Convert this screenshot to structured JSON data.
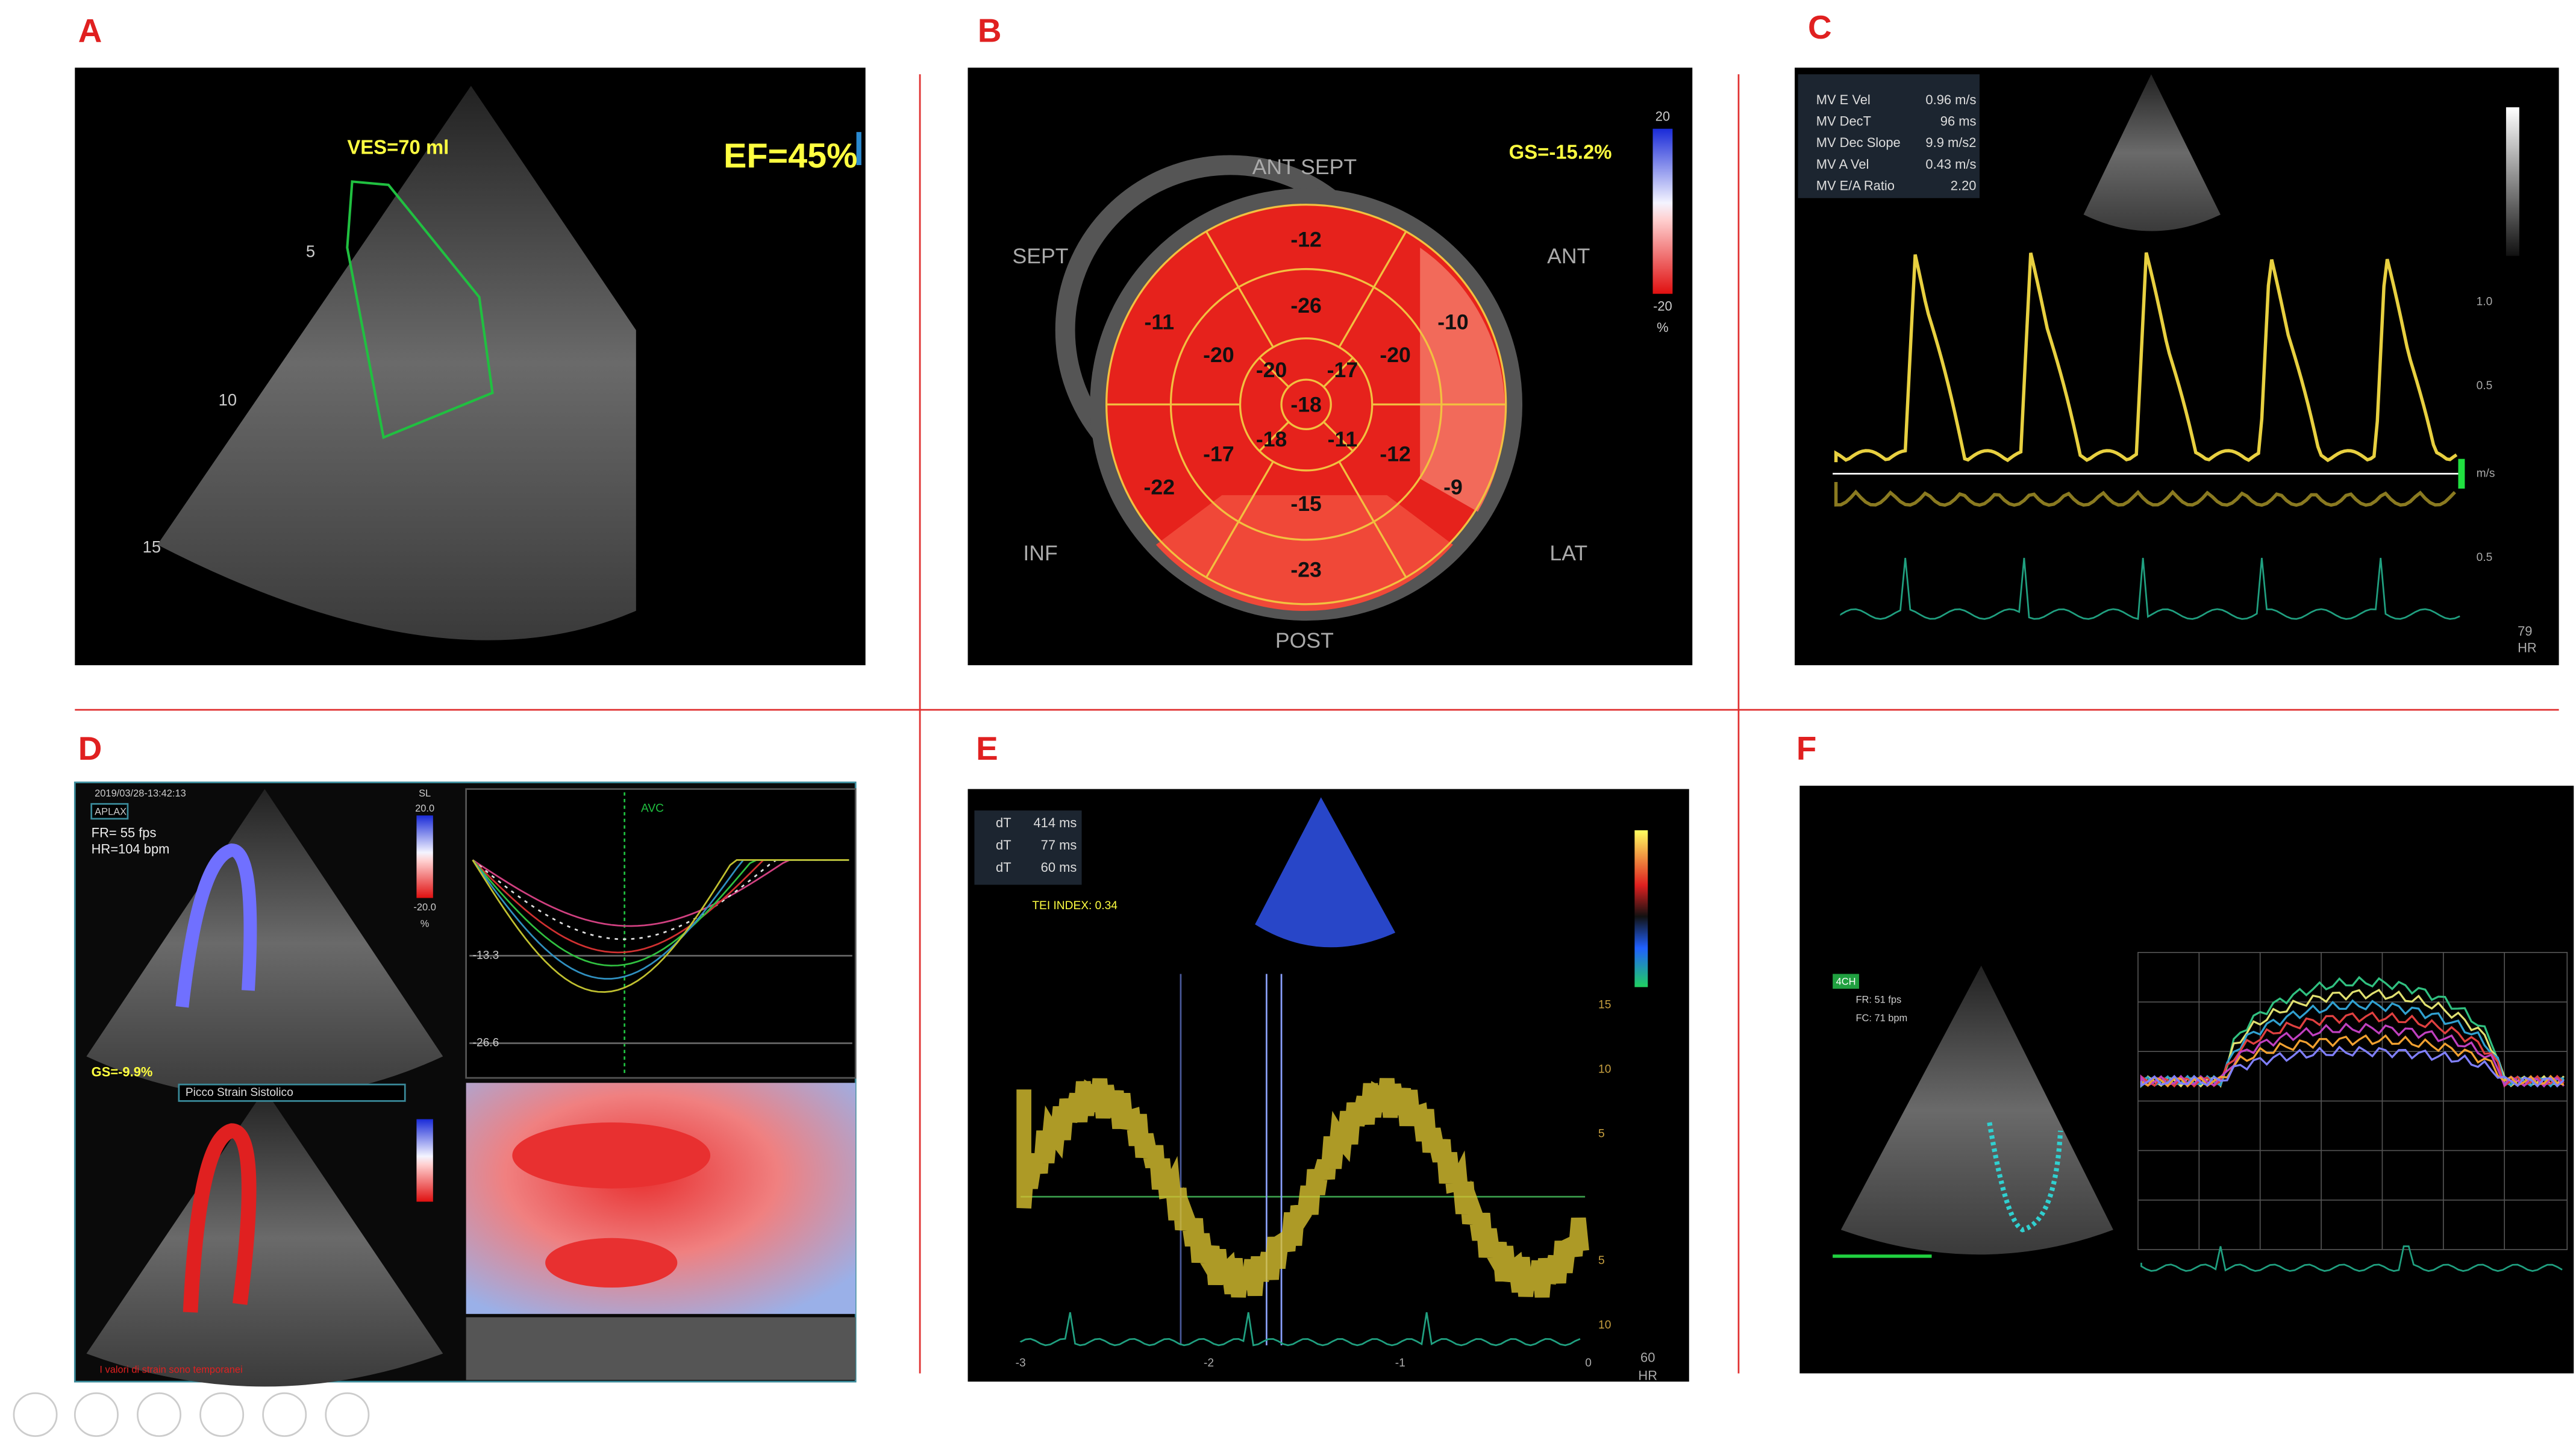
{
  "panel_labels": [
    "A",
    "B",
    "C",
    "D",
    "E",
    "F"
  ],
  "panel_a": {
    "volume": "VES=70 ml",
    "ef": "EF=45%",
    "depth_ticks": [
      "5",
      "10",
      "15"
    ]
  },
  "panel_b": {
    "gs": "GS=-15.2%",
    "walls": [
      "ANT SEPT",
      "ANT",
      "LAT",
      "POST",
      "INF",
      "SEPT"
    ],
    "segments": [
      "-12",
      "-26",
      "-10",
      "-20",
      "-20",
      "-17",
      "-20",
      "-11",
      "-18",
      "-18",
      "-11",
      "-12",
      "-17",
      "-22",
      "-9",
      "-15",
      "-23"
    ],
    "scale": [
      "20",
      "-20",
      "%"
    ]
  },
  "panel_c": {
    "measurements": [
      [
        "MV E Vel",
        "0.96 m/s"
      ],
      [
        "MV DecT",
        "96 ms"
      ],
      [
        "MV Dec Slope",
        "9.9 m/s2"
      ],
      [
        "MV A Vel",
        "0.43 m/s"
      ],
      [
        "MV E/A Ratio",
        "2.20"
      ]
    ],
    "velocity_ticks": [
      "1.0",
      "0.5",
      "m/s",
      "0.5"
    ],
    "hr": [
      "79",
      "HR"
    ]
  },
  "panel_d": {
    "timestamp": "2019/03/28-13:42:13",
    "view": "APLAX",
    "fr": "FR= 55 fps",
    "hr": "HR=104 bpm",
    "gs": "GS=-9.9%",
    "peak": "Picco Strain Sistolico",
    "avc": "AVC",
    "note": "I valori di strain sono temporanei",
    "strain_ticks": [
      "-13.3",
      "-26.6"
    ],
    "scale": [
      "SL",
      "20.0",
      "-20.0",
      "%"
    ]
  },
  "panel_e": {
    "measurements": [
      [
        "dT",
        "414 ms"
      ],
      [
        "dT",
        "77 ms"
      ],
      [
        "dT",
        "60 ms"
      ]
    ],
    "tei": "TEI INDEX: 0.34",
    "velocity_ticks": [
      "15",
      "10",
      "5",
      "5",
      "10"
    ],
    "time_ticks": [
      "-3",
      "-2",
      "-1",
      "0"
    ],
    "hr": [
      "60",
      "HR"
    ]
  },
  "panel_f": {
    "view": "4CH",
    "fr": "FR: 51 fps",
    "fc": "FC: 71 bpm"
  }
}
